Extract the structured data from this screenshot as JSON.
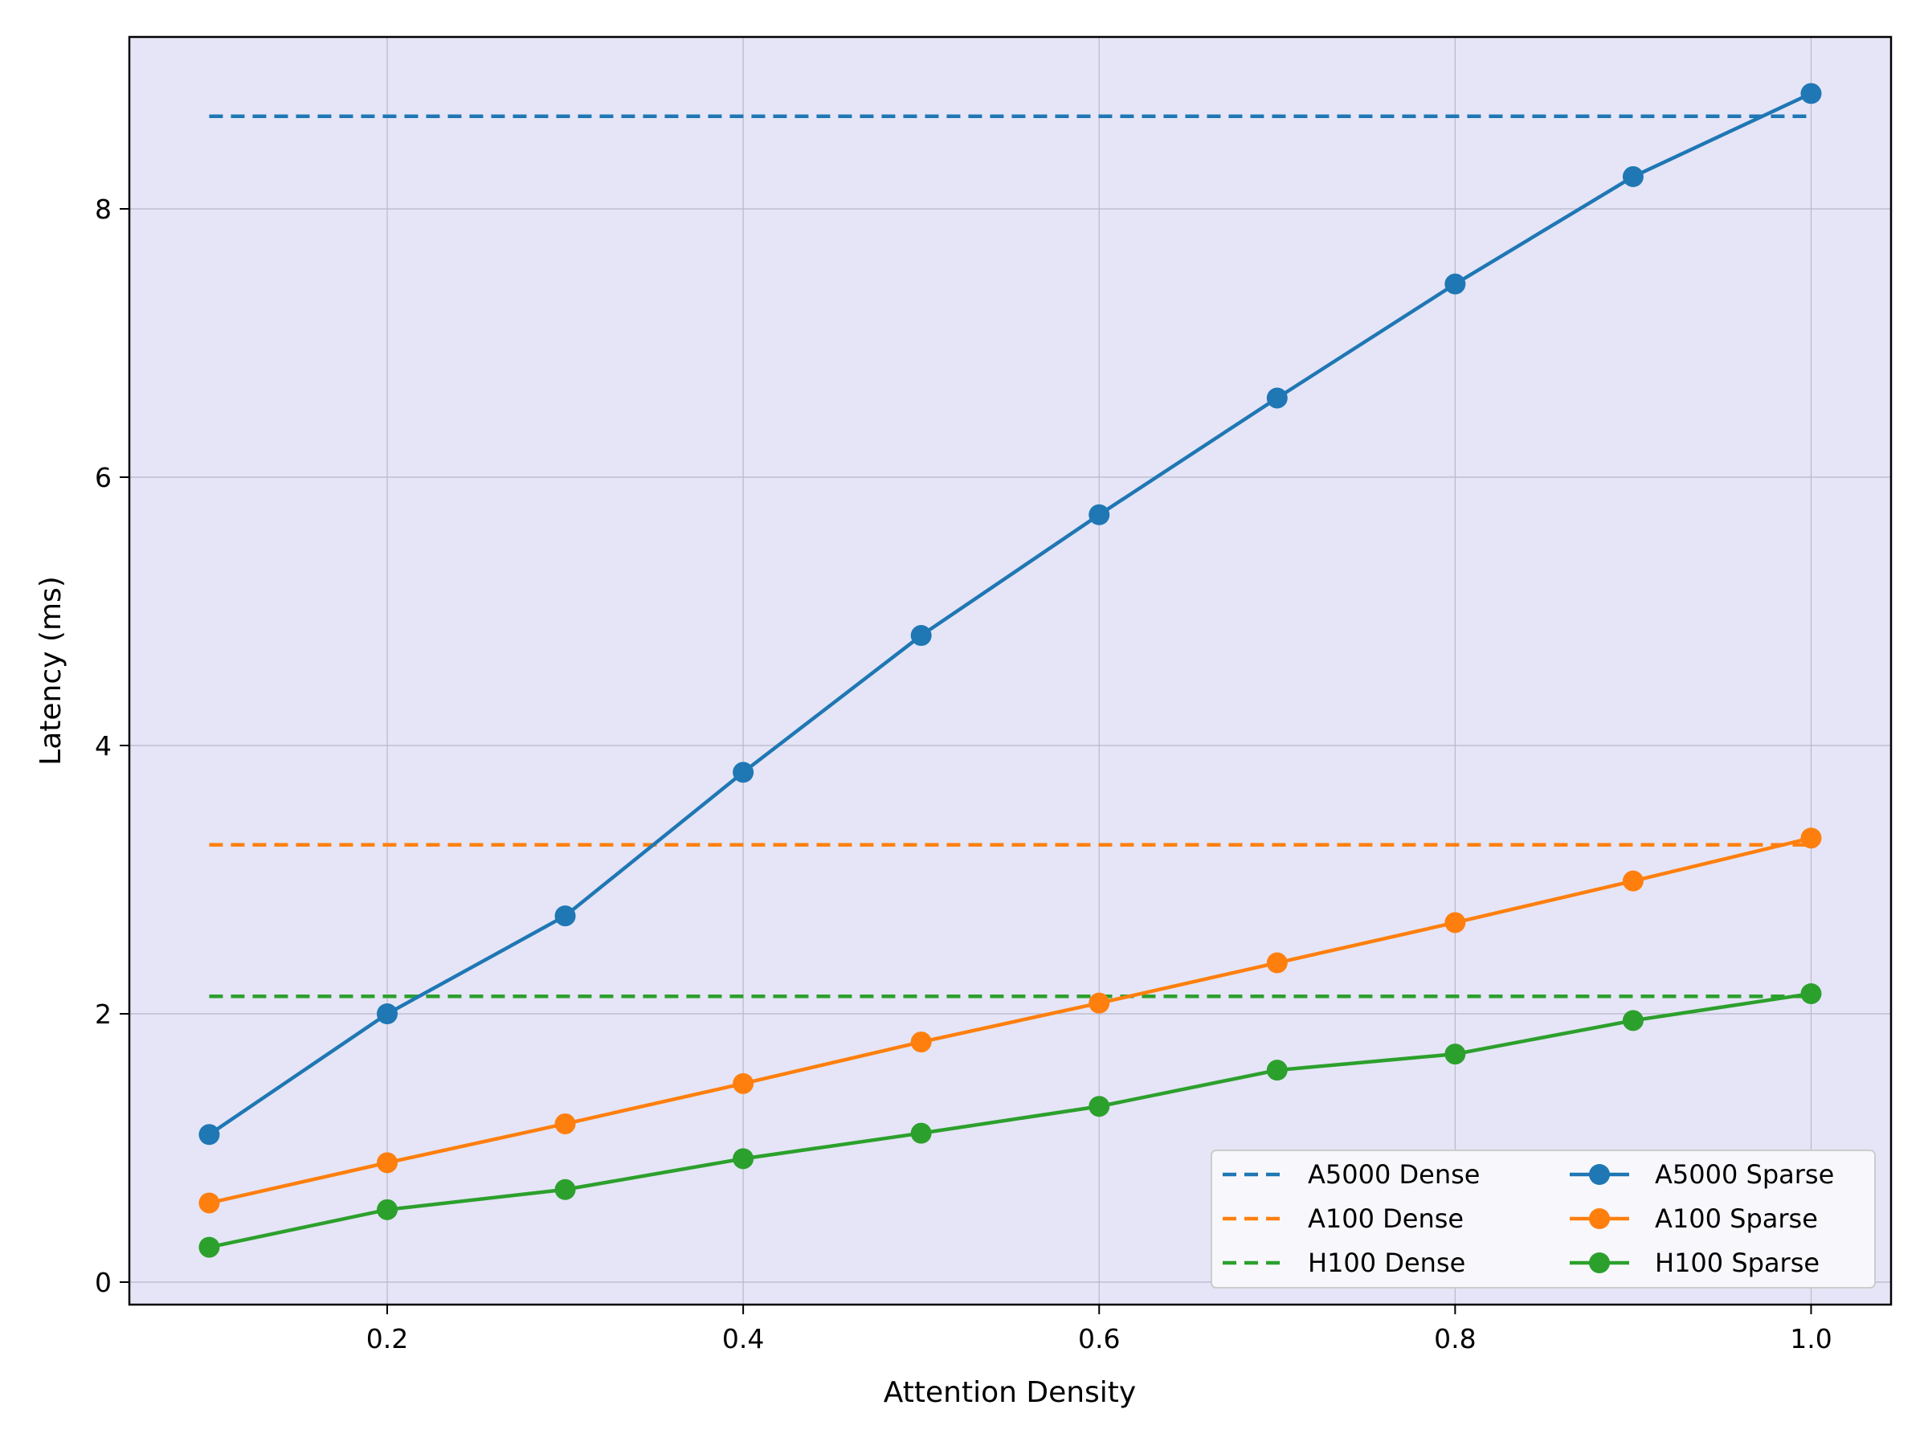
{
  "chart_data": {
    "type": "line",
    "title": "",
    "xlabel": "Attention Density",
    "ylabel": "Latency (ms)",
    "x": [
      0.1,
      0.2,
      0.3,
      0.4,
      0.5,
      0.6,
      0.7,
      0.8,
      0.9,
      1.0
    ],
    "xlim": [
      0.053,
      1.045
    ],
    "ylim": [
      -0.17,
      9.3
    ],
    "xticks": [
      "0.2",
      "0.4",
      "0.6",
      "0.8",
      "1.0"
    ],
    "yticks": [
      "0",
      "2",
      "4",
      "6",
      "8"
    ],
    "grid": true,
    "legend_position": "lower right",
    "background_color": "#e5e5f7",
    "series": [
      {
        "name": "A5000 Dense",
        "style": "dashed",
        "color": "#1f77b4",
        "values": [
          8.69,
          8.69,
          8.69,
          8.69,
          8.69,
          8.69,
          8.69,
          8.69,
          8.69,
          8.69
        ]
      },
      {
        "name": "A100 Dense",
        "style": "dashed",
        "color": "#ff7f0e",
        "values": [
          3.26,
          3.26,
          3.26,
          3.26,
          3.26,
          3.26,
          3.26,
          3.26,
          3.26,
          3.26
        ]
      },
      {
        "name": "H100 Dense",
        "style": "dashed",
        "color": "#2ca02c",
        "values": [
          2.13,
          2.13,
          2.13,
          2.13,
          2.13,
          2.13,
          2.13,
          2.13,
          2.13,
          2.13
        ]
      },
      {
        "name": "A5000 Sparse",
        "style": "solid-marker",
        "color": "#1f77b4",
        "values": [
          1.1,
          2.0,
          2.73,
          3.8,
          4.82,
          5.72,
          6.59,
          7.44,
          8.24,
          8.86
        ]
      },
      {
        "name": "A100 Sparse",
        "style": "solid-marker",
        "color": "#ff7f0e",
        "values": [
          0.59,
          0.89,
          1.18,
          1.48,
          1.79,
          2.08,
          2.38,
          2.68,
          2.99,
          3.31
        ]
      },
      {
        "name": "H100 Sparse",
        "style": "solid-marker",
        "color": "#2ca02c",
        "values": [
          0.26,
          0.54,
          0.69,
          0.92,
          1.11,
          1.31,
          1.58,
          1.7,
          1.95,
          2.15
        ]
      }
    ]
  },
  "legend": {
    "items": [
      {
        "label": "A5000 Dense",
        "color": "#1f77b4",
        "kind": "dashed"
      },
      {
        "label": "A100 Dense",
        "color": "#ff7f0e",
        "kind": "dashed"
      },
      {
        "label": "H100 Dense",
        "color": "#2ca02c",
        "kind": "dashed"
      },
      {
        "label": "A5000 Sparse",
        "color": "#1f77b4",
        "kind": "marker"
      },
      {
        "label": "A100 Sparse",
        "color": "#ff7f0e",
        "kind": "marker"
      },
      {
        "label": "H100 Sparse",
        "color": "#2ca02c",
        "kind": "marker"
      }
    ]
  }
}
